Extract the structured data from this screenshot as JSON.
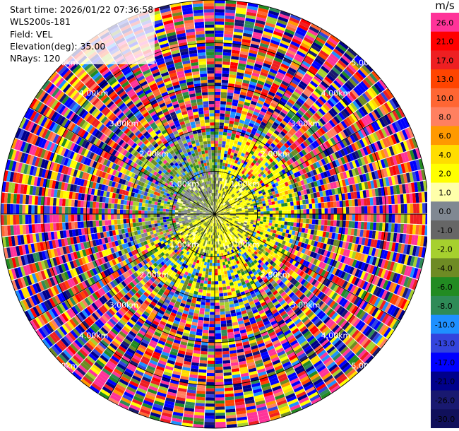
{
  "header": {
    "start_time": "Start time: 2026/01/22 07:36:58",
    "instrument": "WLS200s-181",
    "field": "Field: VEL",
    "elevation": "Elevation(deg): 35.00",
    "nrays": "NRays: 120"
  },
  "chart_data": {
    "type": "heatmap",
    "projection": "polar PPI",
    "range_ring_labels": [
      "1.00km",
      "2.00km",
      "3.00km",
      "4.00km",
      "5.00km"
    ],
    "range_ring_values_km": [
      1,
      2,
      3,
      4,
      5
    ],
    "max_range_km": 5.0,
    "n_rays": 120,
    "colorbar": {
      "unit": "m/s",
      "levels": [
        {
          "label": "26.0",
          "color": "#ff3399"
        },
        {
          "label": "21.0",
          "color": "#ff0000"
        },
        {
          "label": "17.0",
          "color": "#ee1f22"
        },
        {
          "label": "13.0",
          "color": "#ff4400"
        },
        {
          "label": "10.0",
          "color": "#ff6633"
        },
        {
          "label": "8.0",
          "color": "#ff8060"
        },
        {
          "label": "6.0",
          "color": "#ff9900"
        },
        {
          "label": "4.0",
          "color": "#ffdd00"
        },
        {
          "label": "2.0",
          "color": "#ffff00"
        },
        {
          "label": "1.0",
          "color": "#ffffaa"
        },
        {
          "label": "0.0",
          "color": "#808892"
        },
        {
          "label": "-1.0",
          "color": "#666666"
        },
        {
          "label": "-2.0",
          "color": "#a6d02e"
        },
        {
          "label": "-4.0",
          "color": "#6e8b24"
        },
        {
          "label": "-6.0",
          "color": "#228b22"
        },
        {
          "label": "-8.0",
          "color": "#2e8b57"
        },
        {
          "label": "-10.0",
          "color": "#1e90ff"
        },
        {
          "label": "-13.0",
          "color": "#3344dd"
        },
        {
          "label": "-17.0",
          "color": "#0000ff"
        },
        {
          "label": "-21.0",
          "color": "#00008b"
        },
        {
          "label": "-26.0",
          "color": "#191970"
        },
        {
          "label": "-30.0",
          "color": "#10105a"
        }
      ]
    },
    "inner_region": {
      "description_values_ms": {
        "near_0_to_1_km": "mostly -2.0 to 1.0",
        "east_and_south": "2.0 to 4.0"
      }
    }
  }
}
